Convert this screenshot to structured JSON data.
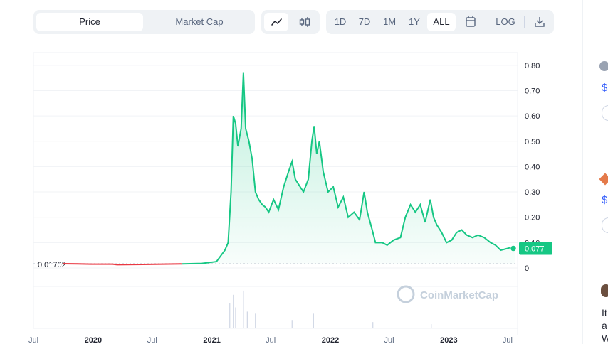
{
  "toolbar": {
    "type_tabs": [
      {
        "label": "Price",
        "active": true
      },
      {
        "label": "Market Cap",
        "active": false
      }
    ],
    "chart_styles": [
      "line-chart-icon",
      "candlestick-icon"
    ],
    "ranges": [
      {
        "label": "1D",
        "active": false
      },
      {
        "label": "7D",
        "active": false
      },
      {
        "label": "1M",
        "active": false
      },
      {
        "label": "1Y",
        "active": false
      },
      {
        "label": "ALL",
        "active": true
      }
    ],
    "calendar_icon": "calendar-icon",
    "log_label": "LOG",
    "download_icon": "download-icon"
  },
  "sidebar": {
    "price_a": "$",
    "price_b": "$",
    "text_1": "It",
    "text_2": "a",
    "text_3": "W"
  },
  "colors": {
    "up": "#16c784",
    "down": "#ea3943",
    "baseline_line": "#c7cdd6"
  },
  "chart_data": {
    "type": "line",
    "watermark": "CoinMarketCap",
    "ylim": [
      0,
      0.85
    ],
    "y_ticks": [
      "0",
      "0.10",
      "0.20",
      "0.30",
      "0.40",
      "0.50",
      "0.60",
      "0.70",
      "0.80"
    ],
    "x_ticks": [
      "Jul",
      "2020",
      "Jul",
      "2021",
      "Jul",
      "2022",
      "Jul",
      "2023",
      "Jul"
    ],
    "x_ticks_bold": [
      false,
      true,
      false,
      true,
      false,
      true,
      false,
      true,
      false
    ],
    "x_tick_dates": [
      "2019-07-01",
      "2020-01-01",
      "2020-07-01",
      "2021-01-01",
      "2021-07-01",
      "2022-01-01",
      "2022-07-01",
      "2023-01-01",
      "2023-07-01"
    ],
    "x_range": [
      "2019-07-01",
      "2023-08-01"
    ],
    "baseline_value": 0.01702,
    "baseline_label": "0.01702",
    "current_value": 0.077,
    "current_label": "0.077",
    "price_series": [
      [
        "2019-10-01",
        0.017
      ],
      [
        "2019-11-15",
        0.016
      ],
      [
        "2020-01-01",
        0.015
      ],
      [
        "2020-03-01",
        0.015
      ],
      [
        "2020-03-15",
        0.013
      ],
      [
        "2020-06-01",
        0.014
      ],
      [
        "2020-08-01",
        0.015
      ],
      [
        "2020-10-01",
        0.016
      ],
      [
        "2020-12-01",
        0.018
      ],
      [
        "2021-01-15",
        0.025
      ],
      [
        "2021-02-10",
        0.07
      ],
      [
        "2021-02-20",
        0.1
      ],
      [
        "2021-03-01",
        0.3
      ],
      [
        "2021-03-08",
        0.6
      ],
      [
        "2021-03-15",
        0.57
      ],
      [
        "2021-03-22",
        0.48
      ],
      [
        "2021-04-01",
        0.55
      ],
      [
        "2021-04-08",
        0.77
      ],
      [
        "2021-04-15",
        0.55
      ],
      [
        "2021-04-25",
        0.5
      ],
      [
        "2021-05-05",
        0.43
      ],
      [
        "2021-05-15",
        0.3
      ],
      [
        "2021-05-25",
        0.27
      ],
      [
        "2021-06-05",
        0.25
      ],
      [
        "2021-06-15",
        0.24
      ],
      [
        "2021-06-25",
        0.22
      ],
      [
        "2021-07-10",
        0.27
      ],
      [
        "2021-07-25",
        0.23
      ],
      [
        "2021-08-10",
        0.32
      ],
      [
        "2021-08-25",
        0.38
      ],
      [
        "2021-09-05",
        0.42
      ],
      [
        "2021-09-15",
        0.35
      ],
      [
        "2021-09-25",
        0.33
      ],
      [
        "2021-10-10",
        0.3
      ],
      [
        "2021-10-25",
        0.35
      ],
      [
        "2021-11-05",
        0.5
      ],
      [
        "2021-11-12",
        0.56
      ],
      [
        "2021-11-20",
        0.45
      ],
      [
        "2021-11-28",
        0.5
      ],
      [
        "2021-12-10",
        0.38
      ],
      [
        "2021-12-25",
        0.3
      ],
      [
        "2022-01-10",
        0.32
      ],
      [
        "2022-01-25",
        0.24
      ],
      [
        "2022-02-10",
        0.28
      ],
      [
        "2022-02-25",
        0.2
      ],
      [
        "2022-03-15",
        0.22
      ],
      [
        "2022-04-01",
        0.19
      ],
      [
        "2022-04-15",
        0.3
      ],
      [
        "2022-04-25",
        0.22
      ],
      [
        "2022-05-10",
        0.15
      ],
      [
        "2022-05-20",
        0.1
      ],
      [
        "2022-06-10",
        0.1
      ],
      [
        "2022-06-25",
        0.09
      ],
      [
        "2022-07-15",
        0.11
      ],
      [
        "2022-08-05",
        0.12
      ],
      [
        "2022-08-20",
        0.2
      ],
      [
        "2022-09-05",
        0.25
      ],
      [
        "2022-09-20",
        0.22
      ],
      [
        "2022-10-05",
        0.25
      ],
      [
        "2022-10-20",
        0.18
      ],
      [
        "2022-11-05",
        0.27
      ],
      [
        "2022-11-15",
        0.2
      ],
      [
        "2022-11-25",
        0.17
      ],
      [
        "2022-12-10",
        0.14
      ],
      [
        "2022-12-25",
        0.1
      ],
      [
        "2023-01-10",
        0.11
      ],
      [
        "2023-01-25",
        0.14
      ],
      [
        "2023-02-10",
        0.15
      ],
      [
        "2023-02-25",
        0.13
      ],
      [
        "2023-03-15",
        0.12
      ],
      [
        "2023-04-01",
        0.13
      ],
      [
        "2023-04-20",
        0.12
      ],
      [
        "2023-05-10",
        0.1
      ],
      [
        "2023-05-25",
        0.09
      ],
      [
        "2023-06-10",
        0.07
      ],
      [
        "2023-06-25",
        0.075
      ],
      [
        "2023-07-10",
        0.08
      ],
      [
        "2023-07-25",
        0.077
      ]
    ],
    "volume_spikes": [
      [
        "2021-02-25",
        0.6
      ],
      [
        "2021-03-08",
        0.8
      ],
      [
        "2021-03-15",
        0.5
      ],
      [
        "2021-04-08",
        0.9
      ],
      [
        "2021-04-20",
        0.4
      ],
      [
        "2021-05-15",
        0.35
      ],
      [
        "2021-09-05",
        0.2
      ],
      [
        "2021-11-10",
        0.35
      ],
      [
        "2022-05-12",
        0.15
      ],
      [
        "2022-11-08",
        0.1
      ]
    ]
  }
}
